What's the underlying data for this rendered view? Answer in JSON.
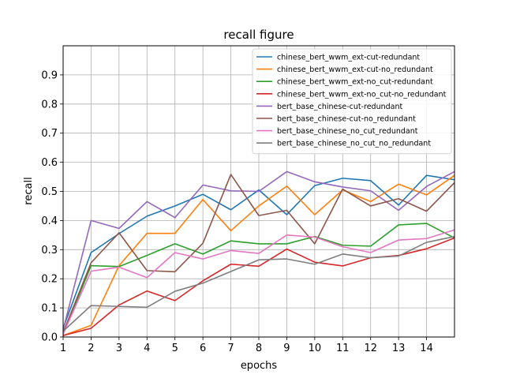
{
  "chart_data": {
    "type": "line",
    "title": "recall figure",
    "xlabel": "epochs",
    "ylabel": "recall",
    "x": [
      1,
      2,
      3,
      4,
      5,
      6,
      7,
      8,
      9,
      10,
      11,
      12,
      13,
      14,
      15
    ],
    "xlim": [
      1,
      15
    ],
    "ylim": [
      0,
      1.0
    ],
    "xticks": [
      1,
      2,
      3,
      4,
      5,
      6,
      7,
      8,
      9,
      10,
      11,
      12,
      13,
      14
    ],
    "yticks": [
      0.0,
      0.1,
      0.2,
      0.3,
      0.4,
      0.5,
      0.6,
      0.7,
      0.8,
      0.9
    ],
    "xtick_labels": [
      "1",
      "2",
      "3",
      "4",
      "5",
      "6",
      "7",
      "8",
      "9",
      "10",
      "11",
      "12",
      "13",
      "14"
    ],
    "ytick_labels": [
      "0.0",
      "0.1",
      "0.2",
      "0.3",
      "0.4",
      "0.5",
      "0.6",
      "0.7",
      "0.8",
      "0.9"
    ],
    "grid": true,
    "legend_position": "top-right",
    "series": [
      {
        "name": "chinese_bert_wwm_ext-cut-redundant",
        "color": "#1f77b4",
        "values": [
          0.03,
          0.29,
          0.355,
          0.415,
          0.45,
          0.49,
          0.437,
          0.505,
          0.42,
          0.52,
          0.545,
          0.537,
          0.453,
          0.555,
          0.54
        ]
      },
      {
        "name": "chinese_bert_wwm_ext-cut-no_redundant",
        "color": "#ff7f0e",
        "values": [
          0.005,
          0.04,
          0.245,
          0.356,
          0.356,
          0.472,
          0.365,
          0.45,
          0.518,
          0.42,
          0.505,
          0.465,
          0.525,
          0.488,
          0.555
        ]
      },
      {
        "name": "chinese_bert_wwm_ext-no_cut-redundant",
        "color": "#2ca02c",
        "values": [
          0.01,
          0.245,
          0.242,
          0.28,
          0.32,
          0.285,
          0.33,
          0.32,
          0.32,
          0.345,
          0.315,
          0.312,
          0.385,
          0.39,
          0.34
        ]
      },
      {
        "name": "chinese_bert_wwm_ext-no_cut-no_redundant",
        "color": "#d62728",
        "values": [
          0.005,
          0.03,
          0.11,
          0.158,
          0.125,
          0.193,
          0.25,
          0.243,
          0.302,
          0.257,
          0.244,
          0.272,
          0.28,
          0.303,
          0.34
        ]
      },
      {
        "name": "bert_base_chinese-cut-redundant",
        "color": "#9467bd",
        "values": [
          0.025,
          0.4,
          0.373,
          0.465,
          0.41,
          0.522,
          0.502,
          0.5,
          0.568,
          0.533,
          0.515,
          0.502,
          0.435,
          0.517,
          0.568
        ]
      },
      {
        "name": "bert_base_chinese-cut-no_redundant",
        "color": "#8c564b",
        "values": [
          0.015,
          0.255,
          0.358,
          0.228,
          0.224,
          0.322,
          0.558,
          0.417,
          0.435,
          0.32,
          0.508,
          0.45,
          0.475,
          0.432,
          0.53
        ]
      },
      {
        "name": "bert_base_chinese_no_cut_redundant",
        "color": "#e377c2",
        "values": [
          0.01,
          0.226,
          0.24,
          0.204,
          0.29,
          0.268,
          0.297,
          0.287,
          0.35,
          0.343,
          0.31,
          0.29,
          0.333,
          0.338,
          0.368
        ]
      },
      {
        "name": "bert_base_chinese_no_cut_no_redundant",
        "color": "#7f7f7f",
        "values": [
          0.02,
          0.108,
          0.105,
          0.102,
          0.157,
          0.185,
          0.225,
          0.265,
          0.268,
          0.25,
          0.285,
          0.272,
          0.278,
          0.325,
          0.345
        ]
      }
    ]
  }
}
